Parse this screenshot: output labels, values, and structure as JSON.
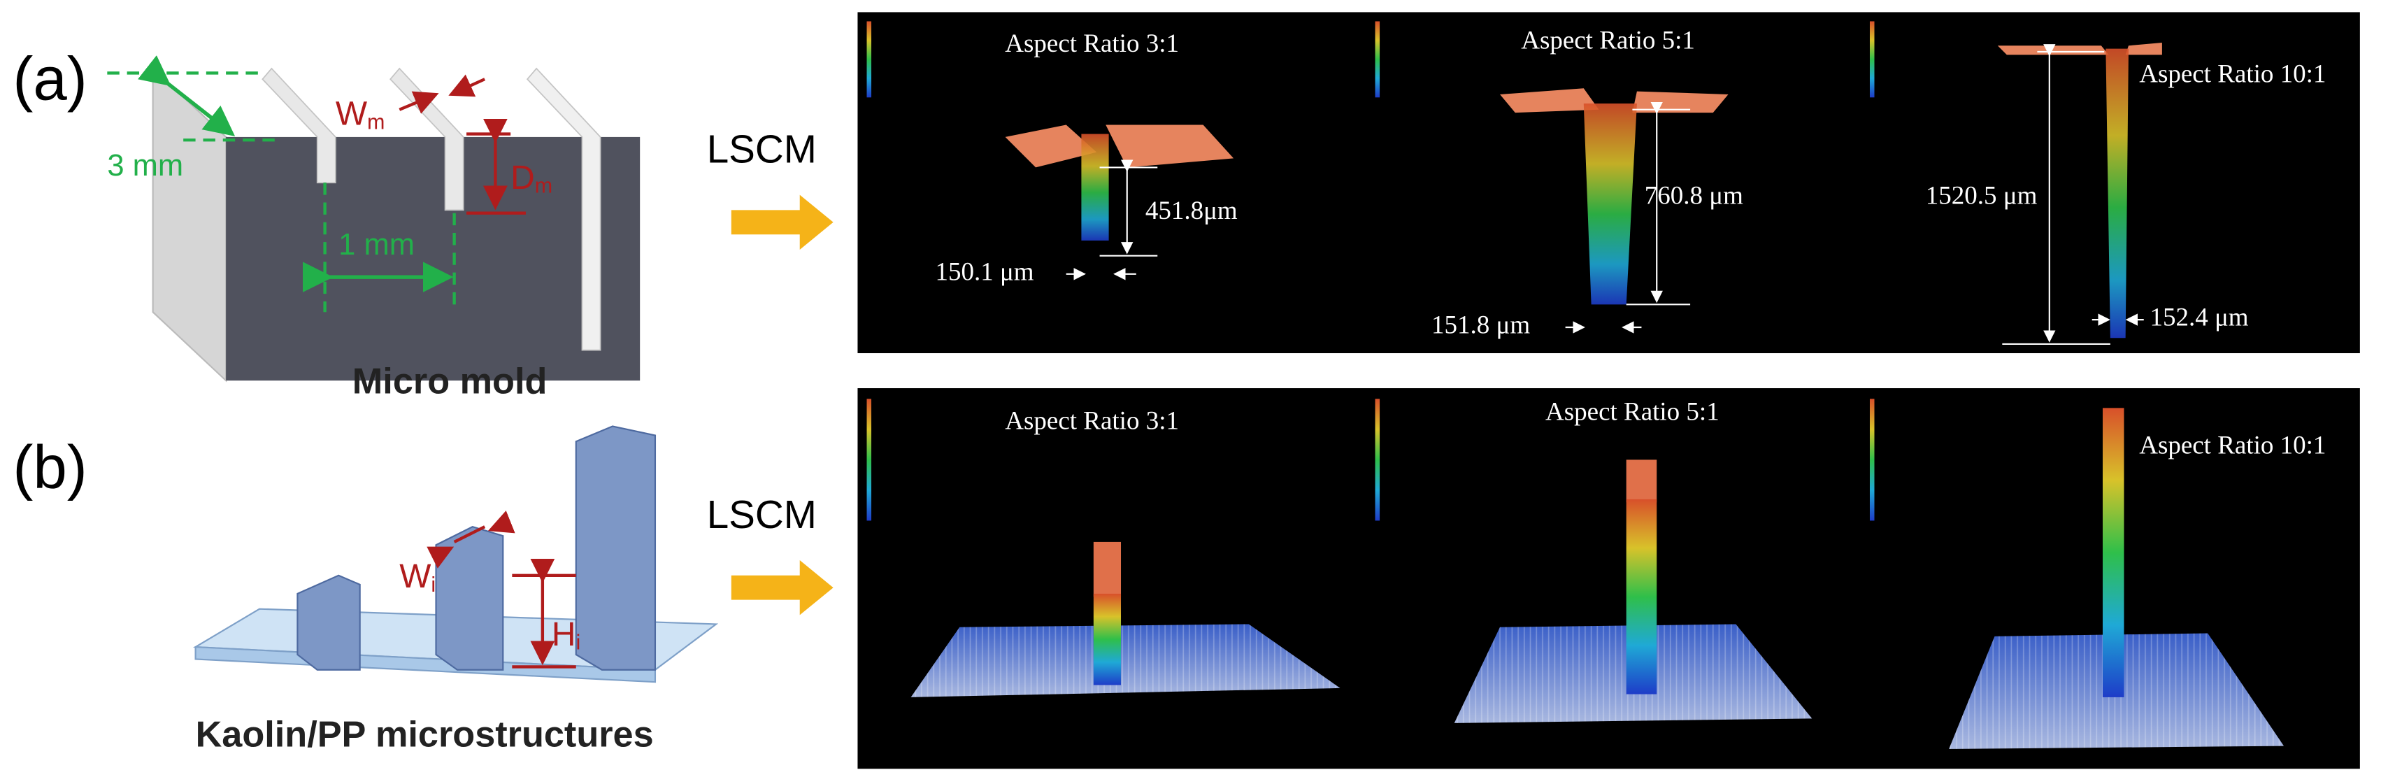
{
  "panels": [
    {
      "label": "(a)",
      "schematic": {
        "caption": "Micro mold",
        "pitch_label": "3 mm",
        "spacing_label": "1 mm",
        "width_label": {
          "text": "W",
          "subscript": "m"
        },
        "depth_label": {
          "text": "D",
          "subscript": "m"
        }
      },
      "method": "LSCM",
      "scans": [
        {
          "title": "Aspect Ratio 3:1",
          "height": "451.8μm",
          "width": "150.1 μm"
        },
        {
          "title": "Aspect Ratio 5:1",
          "height": "760.8 μm",
          "width": "151.8 μm"
        },
        {
          "title": "Aspect Ratio 10:1",
          "height": "1520.5 μm",
          "width": "152.4 μm"
        }
      ]
    },
    {
      "label": "(b)",
      "schematic": {
        "caption": "Kaolin/PP microstructures",
        "width_label": {
          "text": "W",
          "subscript": "i"
        },
        "height_label": {
          "text": "H",
          "subscript": "i"
        }
      },
      "method": "LSCM",
      "scans": [
        {
          "title": "Aspect Ratio 3:1"
        },
        {
          "title": "Aspect Ratio 5:1"
        },
        {
          "title": "Aspect Ratio 10:1"
        }
      ]
    }
  ]
}
